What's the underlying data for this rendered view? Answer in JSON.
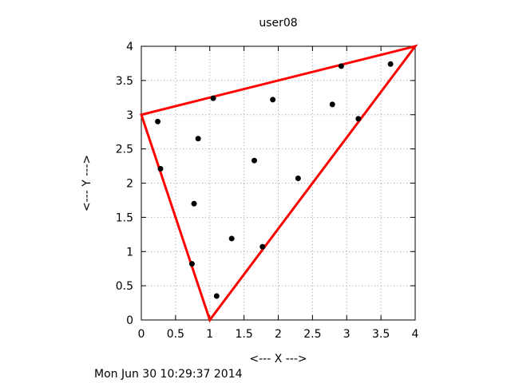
{
  "timestamp": "Mon Jun 30 10:29:37 2014",
  "chart_data": {
    "type": "scatter",
    "title": "user08",
    "xlabel": "<--- X --->",
    "ylabel": "<--- Y --->",
    "xlim": [
      0,
      4
    ],
    "ylim": [
      0,
      4
    ],
    "xticks": [
      "0",
      "0.5",
      "1",
      "1.5",
      "2",
      "2.5",
      "3",
      "3.5",
      "4"
    ],
    "yticks": [
      "0",
      "0.5",
      "1",
      "1.5",
      "2",
      "2.5",
      "3",
      "3.5",
      "4"
    ],
    "grid": true,
    "points": {
      "x": [
        0.24,
        0.28,
        0.74,
        0.77,
        0.83,
        1.05,
        1.1,
        1.32,
        1.65,
        1.77,
        1.92,
        2.29,
        2.79,
        2.92,
        3.17,
        3.64
      ],
      "y": [
        2.9,
        2.21,
        0.82,
        1.7,
        2.65,
        3.24,
        0.35,
        1.19,
        2.33,
        1.07,
        3.22,
        2.07,
        3.15,
        3.71,
        2.94,
        3.74
      ]
    },
    "triangle": {
      "x": [
        0,
        1,
        4
      ],
      "y": [
        3,
        0,
        4
      ]
    },
    "colors": {
      "points": "#000000",
      "triangle": "#ff0000",
      "grid": "#a0a0a0"
    }
  }
}
